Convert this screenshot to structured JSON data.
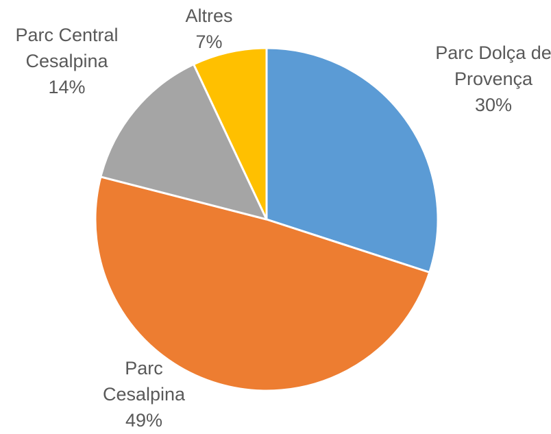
{
  "chart_data": {
    "type": "pie",
    "categories": [
      "Parc Dolça de Provença",
      "Parc Cesalpina",
      "Parc Central Cesalpina",
      "Altres"
    ],
    "values": [
      30,
      49,
      14,
      7
    ],
    "value_labels": [
      "30%",
      "49%",
      "14%",
      "7%"
    ],
    "colors": [
      "#5b9bd5",
      "#ed7d31",
      "#a5a5a5",
      "#ffc000"
    ]
  }
}
